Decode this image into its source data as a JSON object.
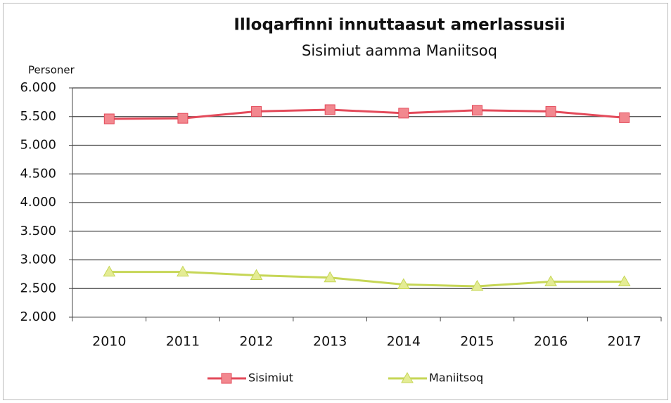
{
  "chart_data": {
    "type": "line",
    "title": "Illoqarfinni innuttaasut amerlassusii",
    "subtitle": "Sisimiut aamma Maniitsoq",
    "y_label": "Personer",
    "categories": [
      "2010",
      "2011",
      "2012",
      "2013",
      "2014",
      "2015",
      "2016",
      "2017"
    ],
    "series": [
      {
        "name": "Sisimiut",
        "color": "#e34a5a",
        "marker_color": "#f2888f",
        "marker": "square",
        "values": [
          5460,
          5470,
          5590,
          5620,
          5560,
          5610,
          5590,
          5480
        ]
      },
      {
        "name": "Maniitsoq",
        "color": "#c6d656",
        "marker_color": "#e4ec94",
        "marker": "triangle",
        "values": [
          2790,
          2790,
          2730,
          2690,
          2570,
          2540,
          2620,
          2620
        ]
      }
    ],
    "ylim": [
      2000,
      6000
    ],
    "yticks": [
      {
        "value": 2000,
        "label": "2.000"
      },
      {
        "value": 2500,
        "label": "2.500"
      },
      {
        "value": 3000,
        "label": "3.000"
      },
      {
        "value": 3500,
        "label": "3.500"
      },
      {
        "value": 4000,
        "label": "4.000"
      },
      {
        "value": 4500,
        "label": "4.500"
      },
      {
        "value": 5000,
        "label": "5.000"
      },
      {
        "value": 5500,
        "label": "5.500"
      },
      {
        "value": 6000,
        "label": "6.000"
      }
    ],
    "grid": true,
    "legend": "bottom"
  }
}
